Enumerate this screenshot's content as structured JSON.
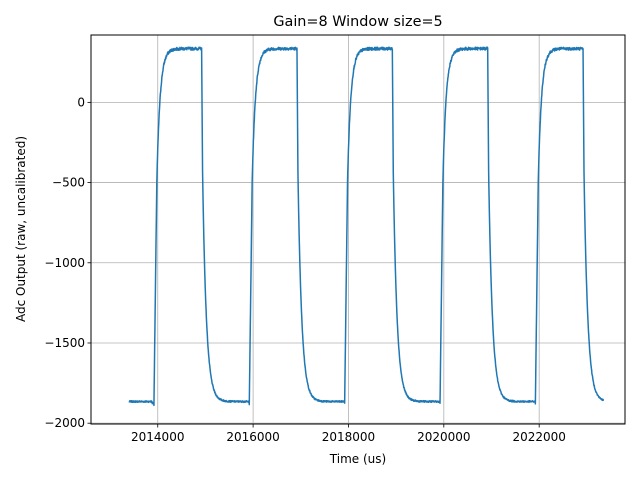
{
  "chart_data": {
    "type": "line",
    "title": "Gain=8 Window size=5",
    "xlabel": "Time (us)",
    "ylabel": "Adc Output (raw, uncalibrated)",
    "xlim": [
      2012600,
      2023800
    ],
    "ylim": [
      -2005,
      420
    ],
    "grid": true,
    "x_ticks": [
      2014000,
      2016000,
      2018000,
      2020000,
      2022000
    ],
    "x_tick_labels": [
      "2014000",
      "2016000",
      "2018000",
      "2020000",
      "2022000"
    ],
    "y_ticks": [
      0,
      -500,
      -1000,
      -1500,
      -2000
    ],
    "y_tick_labels": [
      "0",
      "−500",
      "−1000",
      "−1500",
      "−2000"
    ],
    "colors": {
      "line": "#1f77b4",
      "grid": "#b0b0b0"
    },
    "series": [
      {
        "low": -1865,
        "high": 335,
        "start": 2013400,
        "end": 2023350,
        "rises": [
          2013920,
          2015920,
          2017920,
          2019920,
          2021920
        ],
        "falls": [
          2014920,
          2016920,
          2018920,
          2020920,
          2022920
        ],
        "x": [
          2013400,
          2013900,
          2013920,
          2013990,
          2014040,
          2014100,
          2014200,
          2014300,
          2014920,
          2014950,
          2015000,
          2015050,
          2015100,
          2015150,
          2015200,
          2015300,
          2015920,
          2016920,
          2017920,
          2018920,
          2019920,
          2020920,
          2021920,
          2022920,
          2023350
        ],
        "y": [
          -1860,
          -1870,
          -1880,
          -1300,
          0,
          220,
          310,
          335,
          335,
          -1000,
          -1400,
          -1600,
          -1700,
          -1780,
          -1830,
          -1860,
          -1865,
          335,
          -1865,
          335,
          -1865,
          335,
          -1865,
          335,
          -1865
        ]
      }
    ]
  }
}
